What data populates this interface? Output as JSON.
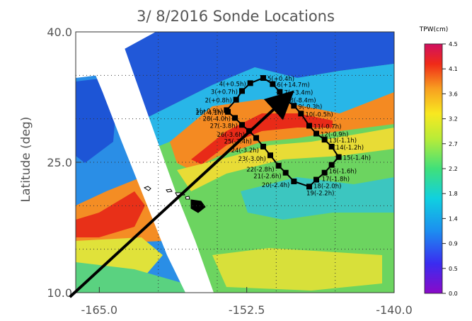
{
  "chart_data": {
    "type": "heatmap",
    "title": "3/ 8/2016 Sonde Locations",
    "xlabel": "",
    "ylabel": "Latitude (deg)",
    "xlim": [
      -167,
      -140
    ],
    "ylim": [
      10,
      40
    ],
    "x_ticks": [
      "-165.0",
      "-152.5",
      "-140.0"
    ],
    "y_ticks": [
      "10.0",
      "25.0",
      "40.0"
    ],
    "x_tick_values": [
      -165,
      -152.5,
      -140
    ],
    "y_tick_values": [
      10,
      25,
      40
    ],
    "grid": "dotted",
    "colorbar": {
      "label": "TPW(cm)",
      "range": [
        0.0,
        4.5
      ],
      "ticks": [
        "0.0",
        "0.5",
        "0.9",
        "1.4",
        "1.8",
        "2.2",
        "2.7",
        "3.2",
        "3.6",
        "4.1",
        "4.5"
      ],
      "tick_values": [
        0.0,
        0.45,
        0.9,
        1.35,
        1.8,
        2.25,
        2.7,
        3.15,
        3.6,
        4.05,
        4.5
      ]
    },
    "sondes": [
      {
        "label": "1(+0.9h)",
        "lon": -154.2,
        "lat": 31.0
      },
      {
        "label": "2(+0.8h)",
        "lon": -153.4,
        "lat": 32.2
      },
      {
        "label": "3(+0.7h)",
        "lon": -152.9,
        "lat": 33.2
      },
      {
        "label": "4(+0.5h)",
        "lon": -152.2,
        "lat": 34.1
      },
      {
        "label": "5(+0.4h)",
        "lon": -151.1,
        "lat": 34.7
      },
      {
        "label": "6(+14.7m)",
        "lon": -150.3,
        "lat": 34.0
      },
      {
        "label": "7(+3.4m)",
        "lon": -149.7,
        "lat": 33.1
      },
      {
        "label": "8(-8.4m)",
        "lon": -149.2,
        "lat": 32.2
      },
      {
        "label": "9(-0.3h)",
        "lon": -148.5,
        "lat": 31.5
      },
      {
        "label": "10(-0.5h)",
        "lon": -147.9,
        "lat": 30.6
      },
      {
        "label": "11(-0.7h)",
        "lon": -147.2,
        "lat": 29.2
      },
      {
        "label": "12(-0.9h)",
        "lon": -146.6,
        "lat": 28.3
      },
      {
        "label": "13(-1.1h)",
        "lon": -145.9,
        "lat": 27.6
      },
      {
        "label": "14(-1.2h)",
        "lon": -145.3,
        "lat": 26.8
      },
      {
        "label": "15(-1.4h)",
        "lon": -144.7,
        "lat": 25.6
      },
      {
        "label": "16(-1.6h)",
        "lon": -145.3,
        "lat": 24.7
      },
      {
        "label": "17(-1.8h)",
        "lon": -145.9,
        "lat": 23.8
      },
      {
        "label": "18(-2.0h)",
        "lon": -146.6,
        "lat": 23.0
      },
      {
        "label": "19(-2.2h)",
        "lon": -147.2,
        "lat": 22.2
      },
      {
        "label": "20(-2.4h)",
        "lon": -148.5,
        "lat": 22.8
      },
      {
        "label": "21(-2.6h)",
        "lon": -149.2,
        "lat": 23.8
      },
      {
        "label": "22(-2.8h)",
        "lon": -149.8,
        "lat": 24.6
      },
      {
        "label": "23(-3.0h)",
        "lon": -150.5,
        "lat": 25.8
      },
      {
        "label": "24(-3.2h)",
        "lon": -151.1,
        "lat": 26.8
      },
      {
        "label": "25(-3.4h)",
        "lon": -151.7,
        "lat": 27.8
      },
      {
        "label": "26(-3.6h)",
        "lon": -152.3,
        "lat": 28.6
      },
      {
        "label": "27(-3.8h)",
        "lon": -152.9,
        "lat": 29.3
      },
      {
        "label": "28(-4.0h)",
        "lon": -153.5,
        "lat": 30.1
      },
      {
        "label": "29(-4.1h)",
        "lon": -154.1,
        "lat": 30.8
      }
    ],
    "arrow": {
      "from": {
        "lon": -167.5,
        "lat": 9.5
      },
      "to": {
        "lon": -149.0,
        "lat": 32.6
      }
    },
    "colors": {
      "high": "#e8201a",
      "orange": "#f47a20",
      "yellow": "#f2e21f",
      "green": "#7fd24a",
      "cyan": "#22b4e8",
      "blue": "#2355d8",
      "purple": "#6a1fb0",
      "magenta": "#c8146f"
    }
  }
}
